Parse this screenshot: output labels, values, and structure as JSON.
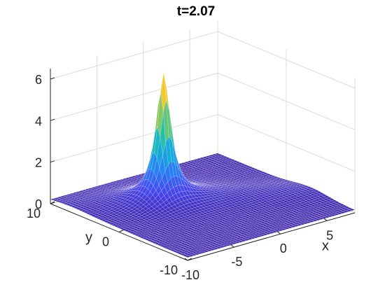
{
  "title": "t=2.07",
  "chart_data": {
    "type": "surface",
    "title": "t=2.07",
    "xlabel": "x",
    "ylabel": "y",
    "zlabel": "",
    "xlim": [
      -10,
      8
    ],
    "ylim": [
      -10,
      10
    ],
    "zlim": [
      0,
      6.5
    ],
    "xticks": [
      -10,
      -5,
      0,
      5
    ],
    "yticks": [
      -10,
      0,
      10
    ],
    "zticks": [
      0,
      2,
      4,
      6
    ],
    "xtick_labels": [
      "-10",
      "-5",
      "0",
      "5"
    ],
    "ytick_labels": [
      "-10",
      "0",
      "10"
    ],
    "ztick_labels": [
      "0",
      "2",
      "4",
      "6"
    ],
    "grid": true,
    "colormap": "parula",
    "peak": {
      "x": -3,
      "y": 3,
      "z": 6.2
    },
    "baseline_z": 0.12,
    "colors": {
      "low": "#3e26a8",
      "mid": "#2ab6c4",
      "high": "#f9fb15",
      "grid": "#dcdcdc",
      "axis": "#262626"
    }
  }
}
